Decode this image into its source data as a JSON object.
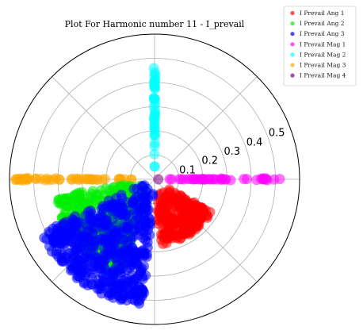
{
  "chart_data": {
    "type": "scatter",
    "projection": "polar",
    "title": "Plot For Harmonic number 11 - I_prevail",
    "radial_ticks": [
      "0.1",
      "0.2",
      "0.3",
      "0.4",
      "0.5"
    ],
    "rlim": [
      0,
      0.6
    ],
    "theta_gridlines_deg": [
      0,
      45,
      90,
      135,
      180,
      225,
      270,
      315
    ],
    "grid": true,
    "legend_position": "top-right",
    "series": [
      {
        "name": "I Prevail Ang 1",
        "color": "#ff0000",
        "theta_deg_range": [
          275,
          330
        ],
        "r_range": [
          0.05,
          0.27
        ]
      },
      {
        "name": "I Prevail Ang 2",
        "color": "#00ee00",
        "theta_deg_range": [
          190,
          250
        ],
        "r_range": [
          0.05,
          0.42
        ]
      },
      {
        "name": "I Prevail Ang 3",
        "color": "#0000ff",
        "theta_deg_range": [
          205,
          265
        ],
        "r_range": [
          0.03,
          0.52
        ]
      },
      {
        "name": "I Prevail Mag 1",
        "color": "#ff00ff",
        "theta_deg": 0,
        "r_range": [
          0.06,
          0.52
        ]
      },
      {
        "name": "I Prevail Mag 2",
        "color": "#00ffff",
        "theta_deg": 90,
        "r_range": [
          0.05,
          0.46
        ]
      },
      {
        "name": "I Prevail Mag 3",
        "color": "#ffa500",
        "theta_deg": 180,
        "r_range": [
          0.08,
          0.58
        ]
      },
      {
        "name": "I Prevail Mag 4",
        "color": "#800080",
        "theta_deg": 0,
        "r_range": [
          0.0,
          0.02
        ]
      }
    ]
  }
}
